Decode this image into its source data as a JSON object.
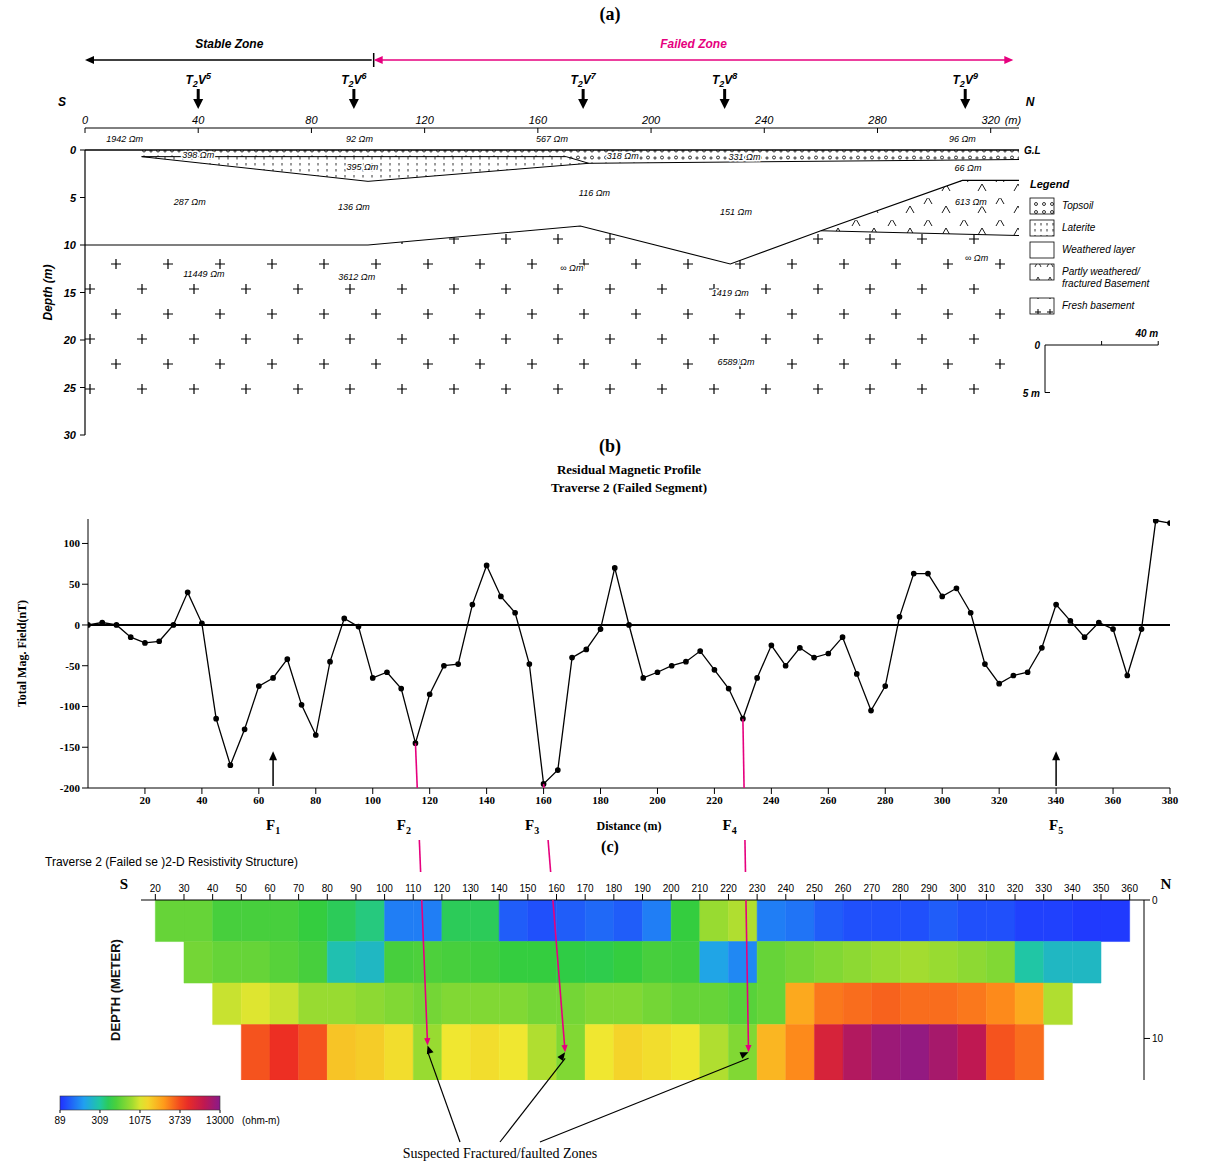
{
  "chart_data": [
    {
      "panel": "(a)",
      "type": "section",
      "zones": [
        {
          "name": "Stable Zone",
          "x": [
            0,
            102
          ],
          "color": "#000000"
        },
        {
          "name": "Failed Zone",
          "x": [
            102,
            328
          ],
          "color": "#e6007e"
        }
      ],
      "stations": [
        {
          "label": "T2V5",
          "x": 40
        },
        {
          "label": "T2V6",
          "x": 95
        },
        {
          "label": "T2V7",
          "x": 176
        },
        {
          "label": "T2V8",
          "x": 226
        },
        {
          "label": "T2V9",
          "x": 311
        }
      ],
      "direction_labels": [
        "S",
        "N"
      ],
      "xlabel": "(m)",
      "ylabel": "Depth (m)",
      "xlim": [
        0,
        330
      ],
      "xticks": [
        0,
        40,
        80,
        120,
        160,
        200,
        240,
        280,
        320
      ],
      "ylim": [
        0,
        30
      ],
      "yticks": [
        0,
        5,
        10,
        15,
        20,
        25,
        30
      ],
      "ground_label": "G.L",
      "boundaries": {
        "topsoil_base": [
          [
            20,
            0.7
          ],
          [
            170,
            0.7
          ],
          [
            178,
            1.4
          ],
          [
            330,
            1.0
          ]
        ],
        "laterite_base": [
          [
            20,
            0.7
          ],
          [
            100,
            3.3
          ],
          [
            178,
            1.4
          ]
        ],
        "weathered_base": [
          [
            0,
            10
          ],
          [
            100,
            10
          ],
          [
            175,
            8
          ],
          [
            228,
            12
          ],
          [
            260,
            8.5
          ],
          [
            310,
            3.2
          ],
          [
            330,
            3.2
          ]
        ],
        "fractured_base": [
          [
            260,
            8.5
          ],
          [
            330,
            9
          ]
        ]
      },
      "resistivity_labels": [
        {
          "text": "1942 Ωm",
          "x": 14,
          "depth": -1.2
        },
        {
          "text": "398 Ωm",
          "x": 40,
          "depth": 0.5
        },
        {
          "text": "92 Ωm",
          "x": 97,
          "depth": -1.2
        },
        {
          "text": "395 Ωm",
          "x": 98,
          "depth": 1.8
        },
        {
          "text": "567 Ωm",
          "x": 165,
          "depth": -1.2
        },
        {
          "text": "318 Ωm",
          "x": 190,
          "depth": 0.6
        },
        {
          "text": "331 Ωm",
          "x": 233,
          "depth": 0.7
        },
        {
          "text": "96 Ωm",
          "x": 310,
          "depth": -1.2
        },
        {
          "text": "66 Ωm",
          "x": 312,
          "depth": 1.9
        },
        {
          "text": "287 Ωm",
          "x": 37,
          "depth": 5.5
        },
        {
          "text": "136 Ωm",
          "x": 95,
          "depth": 6
        },
        {
          "text": "116 Ωm",
          "x": 180,
          "depth": 4.5
        },
        {
          "text": "151 Ωm",
          "x": 230,
          "depth": 6.5
        },
        {
          "text": "613 Ωm",
          "x": 313,
          "depth": 5.5
        },
        {
          "text": "∞ Ωm",
          "x": 315,
          "depth": 11.4
        },
        {
          "text": "11449 Ωm",
          "x": 42,
          "depth": 13
        },
        {
          "text": "3612 Ωm",
          "x": 96,
          "depth": 13.4
        },
        {
          "text": "∞ Ωm",
          "x": 172,
          "depth": 12.4
        },
        {
          "text": "1419 Ωm",
          "x": 228,
          "depth": 15
        },
        {
          "text": "6589 Ωm",
          "x": 230,
          "depth": 22.3
        }
      ],
      "legend_title": "Legend",
      "legend_items": [
        "Topsoil",
        "Laterite",
        "Weathered layer",
        "Partly weathered/ fractured Basement",
        "Fresh basement"
      ],
      "scale_bar": {
        "origin": 0,
        "horizontal": {
          "value": 40,
          "label": "40 m"
        },
        "vertical": {
          "value": 5,
          "label": "5 m"
        }
      }
    },
    {
      "panel": "(b)",
      "type": "line",
      "title": "Residual Magnetic Profile",
      "subtitle": "Traverse 2 (Failed Segment)",
      "xlabel": "Distance (m)",
      "ylabel": "Total Mag. Field(nT)",
      "x": [
        0,
        5,
        10,
        15,
        20,
        25,
        30,
        35,
        40,
        45,
        50,
        55,
        60,
        65,
        70,
        75,
        80,
        85,
        90,
        95,
        100,
        105,
        110,
        115,
        120,
        125,
        130,
        135,
        140,
        145,
        150,
        155,
        160,
        165,
        170,
        175,
        180,
        185,
        190,
        195,
        200,
        205,
        210,
        215,
        220,
        225,
        230,
        235,
        240,
        245,
        250,
        255,
        260,
        265,
        270,
        275,
        280,
        285,
        290,
        295,
        300,
        305,
        310,
        315,
        320,
        325,
        330,
        335,
        340,
        345,
        350,
        355,
        360,
        365,
        370,
        375,
        380
      ],
      "values": [
        0,
        3,
        0,
        -15,
        -22,
        -20,
        0,
        40,
        2,
        -115,
        -172,
        -128,
        -75,
        -65,
        -42,
        -98,
        -135,
        -45,
        8,
        -2,
        -65,
        -58,
        -78,
        -145,
        -85,
        -50,
        -48,
        25,
        73,
        35,
        15,
        -48,
        -195,
        -178,
        -40,
        -30,
        -5,
        70,
        0,
        -65,
        -58,
        -50,
        -45,
        -32,
        -55,
        -78,
        -115,
        -65,
        -25,
        -50,
        -28,
        -40,
        -35,
        -15,
        -60,
        -105,
        -75,
        10,
        63,
        63,
        35,
        45,
        15,
        -48,
        -72,
        -62,
        -58,
        -28,
        25,
        5,
        -15,
        3,
        -5,
        -62,
        -5,
        128,
        125
      ],
      "color": "#000000",
      "marker": "circle",
      "line_style": "solid",
      "grid": false,
      "xlim": [
        0,
        380
      ],
      "xticks": [
        20,
        40,
        60,
        80,
        100,
        120,
        140,
        160,
        180,
        200,
        220,
        240,
        260,
        280,
        300,
        320,
        340,
        360,
        380
      ],
      "ylim": [
        -200,
        130
      ],
      "yticks": [
        -200,
        -150,
        -100,
        -50,
        0,
        50,
        100
      ],
      "baseline": 0,
      "annotations": [
        {
          "text": "F1",
          "x": 65,
          "y": -155
        },
        {
          "text": "F2",
          "x": 115,
          "y": -145
        },
        {
          "text": "F3",
          "x": 160,
          "y": -195
        },
        {
          "text": "F4",
          "x": 230,
          "y": -115
        },
        {
          "text": "F5",
          "x": 340,
          "y": -155
        }
      ]
    },
    {
      "panel": "(c)",
      "type": "heatmap",
      "title": "Traverse 2 (Failed se )2-D Resistivity Structure)",
      "direction_labels": [
        "S",
        "N"
      ],
      "ylabel": "DEPTH (METER)",
      "xlim": [
        15,
        365
      ],
      "xticks": [
        20,
        30,
        40,
        50,
        60,
        70,
        80,
        90,
        100,
        110,
        120,
        130,
        140,
        150,
        160,
        170,
        180,
        190,
        200,
        210,
        220,
        230,
        240,
        250,
        260,
        270,
        280,
        290,
        300,
        310,
        320,
        330,
        340,
        350,
        360
      ],
      "ylim": [
        0,
        13
      ],
      "yticks": [
        0,
        10
      ],
      "x_edges": [
        20,
        30,
        40,
        50,
        60,
        70,
        80,
        90,
        100,
        110,
        120,
        130,
        140,
        150,
        160,
        170,
        180,
        190,
        200,
        210,
        220,
        230,
        240,
        250,
        260,
        270,
        280,
        290,
        300,
        310,
        320,
        330,
        340,
        350,
        360
      ],
      "depth_edges": [
        0,
        3,
        6,
        9,
        13
      ],
      "values": [
        [
          600,
          600,
          500,
          500,
          500,
          450,
          400,
          350,
          150,
          150,
          400,
          400,
          120,
          110,
          120,
          130,
          120,
          150,
          450,
          800,
          900,
          150,
          140,
          120,
          110,
          110,
          110,
          120,
          110,
          110,
          100,
          100,
          95,
          95
        ],
        [
          null,
          650,
          600,
          600,
          550,
          500,
          280,
          250,
          500,
          520,
          500,
          480,
          450,
          450,
          430,
          420,
          450,
          500,
          480,
          200,
          160,
          600,
          650,
          700,
          750,
          800,
          850,
          800,
          750,
          700,
          300,
          250,
          250,
          null
        ],
        [
          null,
          null,
          1000,
          1100,
          1000,
          800,
          800,
          750,
          700,
          650,
          700,
          700,
          700,
          650,
          650,
          700,
          700,
          650,
          600,
          600,
          550,
          600,
          2000,
          2800,
          3000,
          3200,
          3000,
          3000,
          2800,
          2500,
          2000,
          900,
          null,
          null
        ],
        [
          null,
          null,
          null,
          3500,
          4500,
          3500,
          1600,
          1500,
          1300,
          800,
          1200,
          1300,
          1200,
          900,
          700,
          1200,
          1400,
          1300,
          1200,
          900,
          700,
          1800,
          2500,
          6000,
          9000,
          11000,
          12000,
          10000,
          8000,
          3500,
          3000,
          null,
          null,
          null
        ]
      ],
      "colorbar": {
        "range": [
          89,
          13000
        ],
        "ticks": [
          89,
          309,
          1075,
          3739,
          13000
        ],
        "label": "(ohm-m)"
      },
      "annotation": {
        "text": "Suspected Fractured/faulted Zones",
        "points": [
          {
            "x": 115,
            "depth": 10.5
          },
          {
            "x": 163,
            "depth": 11
          },
          {
            "x": 227,
            "depth": 11
          }
        ]
      }
    }
  ]
}
